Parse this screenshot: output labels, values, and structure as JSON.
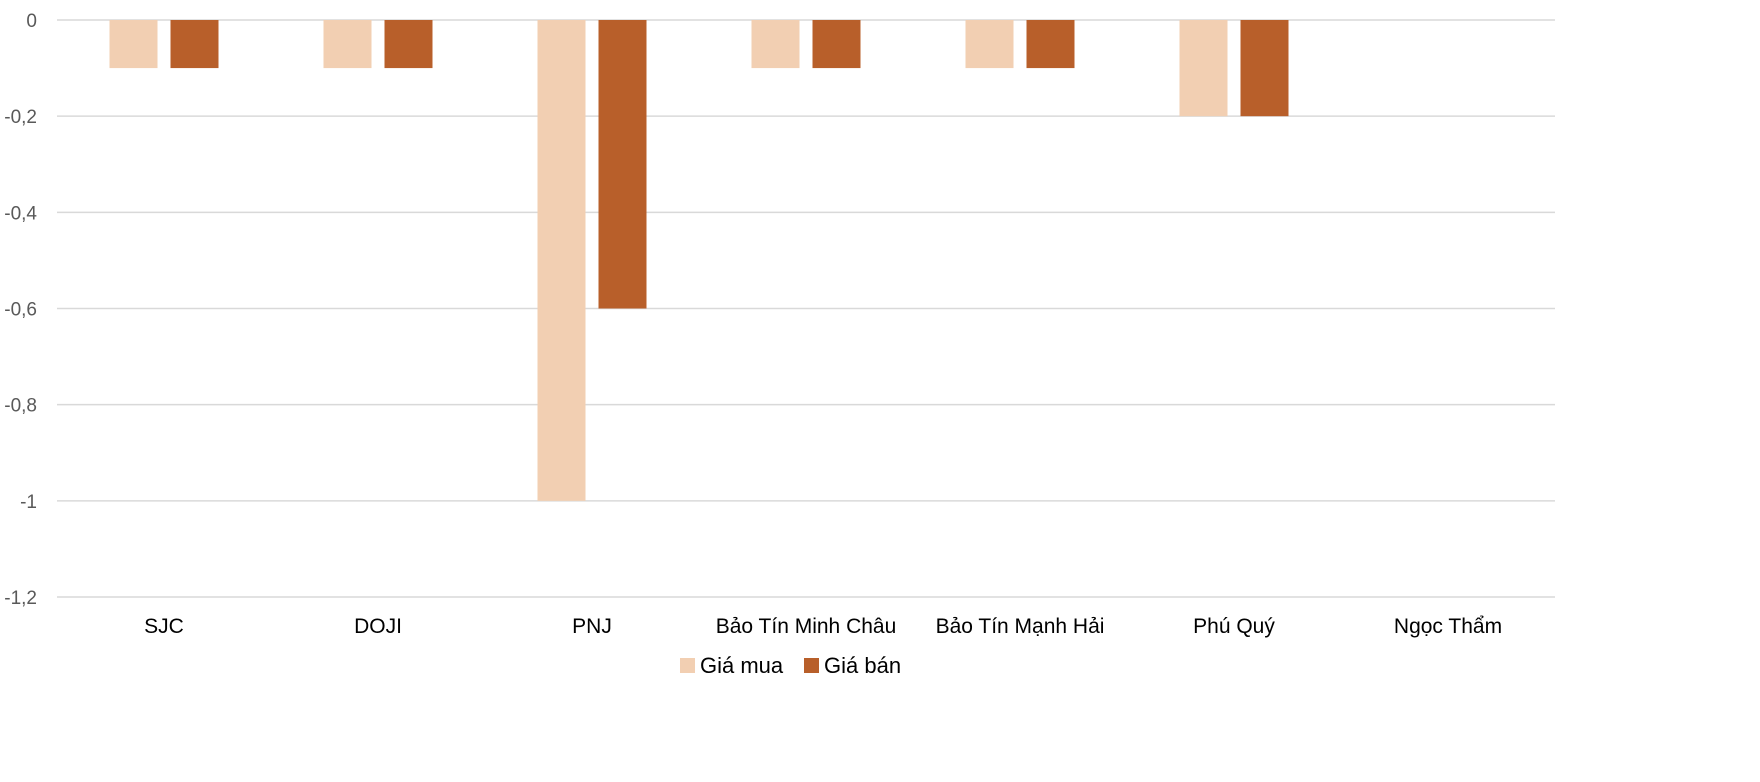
{
  "chart_data": {
    "type": "bar",
    "categories": [
      "SJC",
      "DOJI",
      "PNJ",
      "Bảo Tín Minh Châu",
      "Bảo Tín Mạnh Hải",
      "Phú Quý",
      "Ngọc Thẩm"
    ],
    "series": [
      {
        "name": "Giá mua",
        "values": [
          -0.1,
          -0.1,
          -1,
          -0.1,
          -0.1,
          -0.2,
          0
        ],
        "color": "#f2cfb2"
      },
      {
        "name": "Giá bán",
        "values": [
          -0.1,
          -0.1,
          -0.6,
          -0.1,
          -0.1,
          -0.2,
          0
        ],
        "color": "#b85f2a"
      }
    ],
    "y_ticks": [
      "0",
      "-0,2",
      "-0,4",
      "-0,6",
      "-0,8",
      "-1",
      "-1,2"
    ],
    "ylim": [
      -1.2,
      0
    ],
    "grid": true,
    "legend_position": "bottom",
    "title": "",
    "xlabel": "",
    "ylabel": ""
  }
}
